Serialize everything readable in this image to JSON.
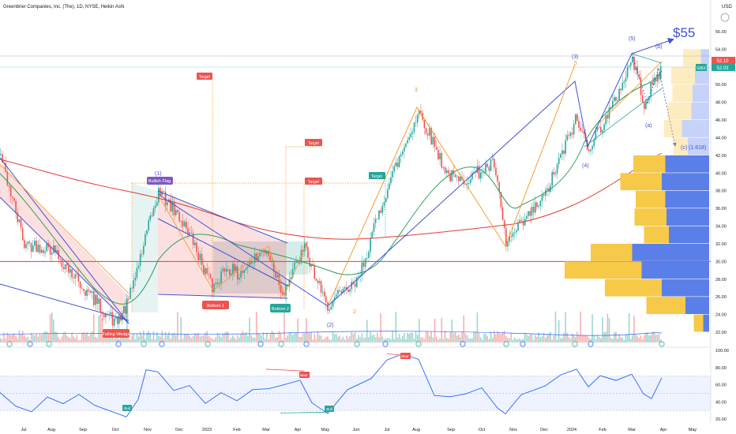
{
  "header": {
    "title": "Greenbrier Companies, Inc. (The), 1D, NYSE, Heikin Ashi",
    "currency": "USD"
  },
  "price_axis": {
    "ticks": [
      "56.00",
      "54.00",
      "52.00",
      "50.00",
      "48.00",
      "46.00",
      "44.00",
      "42.00",
      "40.00",
      "38.00",
      "36.00",
      "34.00",
      "32.00",
      "30.00",
      "28.00",
      "26.00",
      "24.00",
      "22.00"
    ],
    "last_price": "52.10",
    "symbol_tag": "GBX",
    "symbol_price": "52.03"
  },
  "rsi_axis": {
    "ticks": [
      "100.00",
      "80.00",
      "60.00",
      "40.00",
      "20.00"
    ]
  },
  "time_axis": {
    "labels": [
      "Jul",
      "Aug",
      "Sep",
      "Oct",
      "Nov",
      "Dec",
      "2023",
      "Feb",
      "Mar",
      "Apr",
      "May",
      "Jun",
      "Jul",
      "Aug",
      "Sep",
      "Oct",
      "Nov",
      "Dec",
      "2024",
      "Feb",
      "Mar",
      "Apr",
      "May"
    ]
  },
  "annotations": {
    "big_target": "$55",
    "falling_wedge": "Falling Wedge",
    "bullish_flag": "Bullish Flag",
    "bottom1": "Bottom 1",
    "bottom2": "Bottom 2",
    "targets": [
      "Target",
      "Target",
      "Target",
      "Target"
    ],
    "waves": [
      "(1)",
      "(2)",
      "(3)",
      "(4)",
      "(5)",
      "(a)",
      "(b)",
      "(c) (1.618)",
      "3",
      "5",
      "2"
    ],
    "rsi_bull": "Bull",
    "rsi_bear": "Bear"
  },
  "colors": {
    "up": "#26a69a",
    "down": "#ef5350",
    "ma_red": "#e53935",
    "ma_green": "#2e9e5b",
    "wave_orange": "#f7931a",
    "wave_blue": "#3f51d6",
    "rsi": "#2962ff",
    "vp_yellow": "#f7c948",
    "vp_blue": "#5b7fe8",
    "hline": "#e53935"
  },
  "chart_data": {
    "type": "candlestick",
    "title": "Greenbrier Companies, Inc. (The), 1D, NYSE, Heikin Ashi",
    "y_range": [
      21,
      57
    ],
    "price_path": [
      [
        "Jun 2022",
        42.0
      ],
      [
        "Jul 2022",
        32.0
      ],
      [
        "Aug 2022",
        31.5
      ],
      [
        "Sep 2022",
        27.0
      ],
      [
        "Oct 2022",
        23.0
      ],
      [
        "Oct 2022",
        25.0
      ],
      [
        "Nov 2022",
        38.0
      ],
      [
        "Dec 2022",
        34.0
      ],
      [
        "Dec 2022",
        27.0
      ],
      [
        "2023",
        29.5
      ],
      [
        "Feb 2023",
        28.5
      ],
      [
        "Mar 2023",
        31.5
      ],
      [
        "Mar 2023",
        26.5
      ],
      [
        "Apr 2023",
        31.5
      ],
      [
        "May 2023",
        25.0
      ],
      [
        "Jun 2023",
        27.5
      ],
      [
        "Jul 2023",
        38.5
      ],
      [
        "Aug 2023",
        47.0
      ],
      [
        "Sep 2023",
        40.0
      ],
      [
        "Sep 2023",
        39.0
      ],
      [
        "Oct 2023",
        41.0
      ],
      [
        "Nov 2023",
        32.0
      ],
      [
        "Dec 2023",
        37.5
      ],
      [
        "2024",
        46.0
      ],
      [
        "Jan 2024",
        43.0
      ],
      [
        "Feb 2024",
        47.5
      ],
      [
        "Mar 2024",
        53.0
      ],
      [
        "Mar 2024",
        48.0
      ],
      [
        "Apr 2024",
        52.1
      ]
    ],
    "horizontal_level": 30.0,
    "projection": {
      "wave_c_target": 42.8,
      "target_label": "$55"
    },
    "rsi": {
      "range": [
        0,
        100
      ],
      "band": [
        30,
        70
      ]
    },
    "volume_profile": [
      {
        "price": 53,
        "up": 15,
        "down": 7
      },
      {
        "price": 51,
        "up": 20,
        "down": 12
      },
      {
        "price": 49,
        "up": 17,
        "down": 14
      },
      {
        "price": 47,
        "up": 20,
        "down": 15
      },
      {
        "price": 45,
        "up": 15,
        "down": 23
      },
      {
        "price": 43,
        "up": 12,
        "down": 18
      },
      {
        "price": 41,
        "up": 27,
        "down": 37
      },
      {
        "price": 39,
        "up": 35,
        "down": 40
      },
      {
        "price": 37,
        "up": 25,
        "down": 37
      },
      {
        "price": 35,
        "up": 27,
        "down": 36
      },
      {
        "price": 33,
        "up": 21,
        "down": 34
      },
      {
        "price": 31,
        "up": 35,
        "down": 65
      },
      {
        "price": 29,
        "up": 65,
        "down": 57
      },
      {
        "price": 27,
        "up": 48,
        "down": 40
      },
      {
        "price": 25,
        "up": 33,
        "down": 20
      },
      {
        "price": 23,
        "up": 8,
        "down": 5
      }
    ]
  }
}
